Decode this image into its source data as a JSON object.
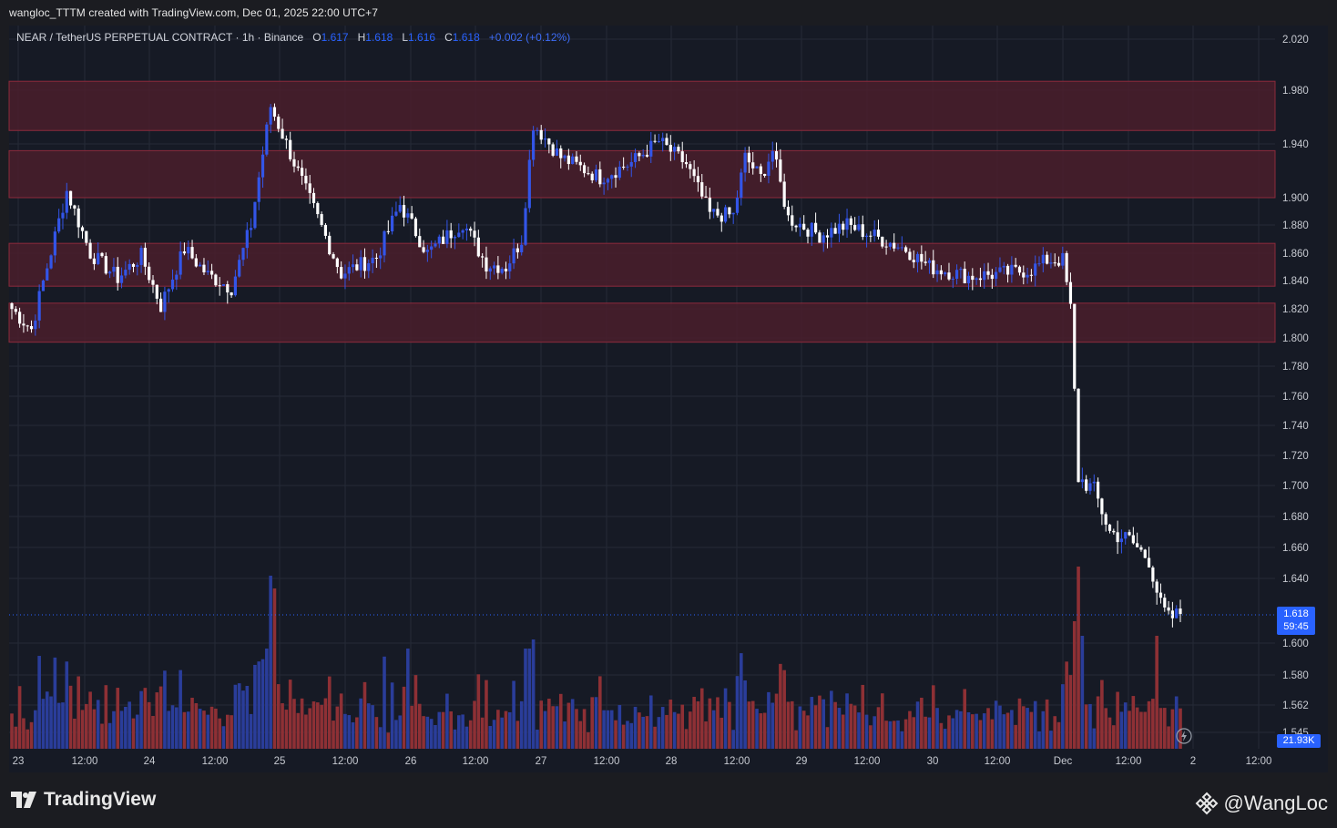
{
  "header": {
    "attribution": "wangloc_TTTM created with TradingView.com, Dec 01, 2025 22:00 UTC+7"
  },
  "legend": {
    "symbol": "NEAR / TetherUS PERPETUAL CONTRACT · 1h · Binance",
    "open_label": "O",
    "open": "1.617",
    "high_label": "H",
    "high": "1.618",
    "low_label": "L",
    "low": "1.616",
    "close_label": "C",
    "close": "1.618",
    "change": "+0.002 (+0.12%)"
  },
  "price_tag": {
    "price": "1.618",
    "countdown": "59:45"
  },
  "volume_tag": "21.93K",
  "footer": {
    "logo_text": "TradingView",
    "author": "@WangLoc"
  },
  "colors": {
    "background": "#161a25",
    "grid": "#252a36",
    "zone_fill": "#4a1f2c",
    "zone_border": "#8c2a3c",
    "up": "#3355e8",
    "down": "#ffffff",
    "vol_up": "#2a3d9a",
    "vol_down": "#8e3035",
    "accent": "#2962ff"
  },
  "chart_data": {
    "type": "candlestick",
    "ylim": [
      1.545,
      2.03
    ],
    "y_ticks": [
      "2.020",
      "1.980",
      "1.940",
      "1.900",
      "1.880",
      "1.860",
      "1.840",
      "1.820",
      "1.800",
      "1.780",
      "1.760",
      "1.740",
      "1.720",
      "1.700",
      "1.680",
      "1.660",
      "1.640",
      "1.600",
      "1.580",
      "1.562",
      "1.545"
    ],
    "x_ticks": [
      "23",
      "12:00",
      "24",
      "12:00",
      "25",
      "12:00",
      "26",
      "12:00",
      "27",
      "12:00",
      "28",
      "12:00",
      "29",
      "12:00",
      "30",
      "12:00",
      "Dec",
      "12:00",
      "2",
      "12:00"
    ],
    "zones": [
      {
        "low": 1.95,
        "high": 1.987
      },
      {
        "low": 1.9,
        "high": 1.935
      },
      {
        "low": 1.836,
        "high": 1.867
      },
      {
        "low": 1.797,
        "high": 1.824
      }
    ],
    "waypoints": [
      [
        0,
        1.82
      ],
      [
        5,
        1.806
      ],
      [
        9,
        1.85
      ],
      [
        14,
        1.905
      ],
      [
        20,
        1.86
      ],
      [
        27,
        1.842
      ],
      [
        33,
        1.858
      ],
      [
        38,
        1.822
      ],
      [
        44,
        1.863
      ],
      [
        50,
        1.844
      ],
      [
        56,
        1.835
      ],
      [
        61,
        1.88
      ],
      [
        66,
        1.968
      ],
      [
        75,
        1.905
      ],
      [
        84,
        1.845
      ],
      [
        93,
        1.857
      ],
      [
        99,
        1.895
      ],
      [
        106,
        1.86
      ],
      [
        115,
        1.882
      ],
      [
        121,
        1.852
      ],
      [
        126,
        1.85
      ],
      [
        130,
        1.87
      ],
      [
        133,
        1.955
      ],
      [
        140,
        1.93
      ],
      [
        150,
        1.915
      ],
      [
        158,
        1.926
      ],
      [
        165,
        1.942
      ],
      [
        172,
        1.925
      ],
      [
        178,
        1.888
      ],
      [
        184,
        1.887
      ],
      [
        187,
        1.93
      ],
      [
        191,
        1.915
      ],
      [
        194,
        1.935
      ],
      [
        198,
        1.885
      ],
      [
        206,
        1.873
      ],
      [
        213,
        1.88
      ],
      [
        220,
        1.872
      ],
      [
        228,
        1.863
      ],
      [
        234,
        1.85
      ],
      [
        244,
        1.843
      ],
      [
        252,
        1.845
      ],
      [
        260,
        1.848
      ],
      [
        264,
        1.855
      ],
      [
        268,
        1.855
      ],
      [
        270,
        1.82
      ],
      [
        272,
        1.705
      ],
      [
        276,
        1.697
      ],
      [
        280,
        1.67
      ],
      [
        285,
        1.665
      ],
      [
        290,
        1.652
      ],
      [
        293,
        1.623
      ],
      [
        295,
        1.615
      ],
      [
        298,
        1.618
      ]
    ],
    "volume_spikes": [
      [
        66,
        0.95
      ],
      [
        67,
        0.88
      ],
      [
        101,
        0.55
      ],
      [
        133,
        0.6
      ],
      [
        271,
        0.7
      ],
      [
        272,
        1.0
      ],
      [
        273,
        0.62
      ],
      [
        292,
        0.62
      ]
    ],
    "last_price": 1.618
  }
}
